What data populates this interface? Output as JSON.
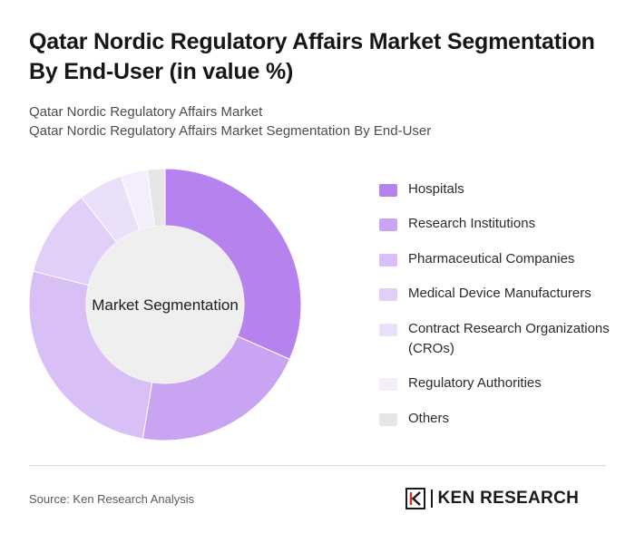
{
  "header": {
    "title": "Qatar Nordic Regulatory Affairs Market Segmentation By End-User (in value %)",
    "subtitle_line1": "Qatar Nordic Regulatory Affairs Market",
    "subtitle_line2": "Qatar Nordic Regulatory Affairs Market Segmentation By End-User"
  },
  "chart_data": {
    "type": "pie",
    "variant": "donut",
    "center_label": "Market Segmentation",
    "categories": [
      "Hospitals",
      "Research Institutions",
      "Pharmaceutical Companies",
      "Medical Device Manufacturers",
      "Contract Research Organizations (CROs)",
      "Regulatory Authorities",
      "Others"
    ],
    "values": [
      30,
      20,
      25,
      10,
      5,
      3,
      2
    ],
    "colors": [
      "#b683ee",
      "#c9a4f2",
      "#d8bff6",
      "#e1cff8",
      "#ebe0fa",
      "#f3edfc",
      "#e6e6e6"
    ],
    "legend_position": "right"
  },
  "footer": {
    "source": "Source: Ken Research Analysis",
    "brand": "KEN RESEARCH",
    "logo_icon": "ken-research-logo-icon"
  }
}
